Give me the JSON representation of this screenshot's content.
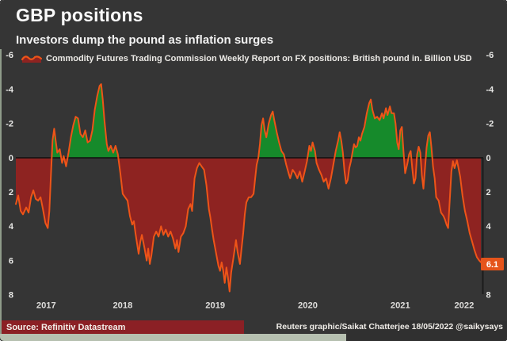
{
  "header": {
    "title": "GBP positions",
    "subtitle": "Investors dump the pound as inflation surges"
  },
  "legend": {
    "label": "Commodity Futures Trading Commission Weekly Report on FX positions: British pound in. Billion USD",
    "icon": "area-line-sample-icon"
  },
  "footer": {
    "source": "Source: Refinitiv Datastream",
    "credit": "Reuters graphic/Saikat Chatterjee 18/05/2022 @saikysays"
  },
  "colors": {
    "background": "#353535",
    "line": "#ee5418",
    "long_fill": "#168a2b",
    "short_fill": "#8e2321",
    "zero_line": "#101010",
    "spine": "#1c1c1c",
    "axis_text": "#e8e8e6",
    "year_text": "#dedddb",
    "badge_bg": "#e5541b",
    "badge_text": "#ffffff",
    "edge_strip": "#9fae99"
  },
  "chart_data": {
    "type": "area",
    "title": "GBP positions",
    "subtitle": "Investors dump the pound as inflation surges",
    "series_name": "CFTC weekly net GBP futures positions, billion USD",
    "value_convention": "positive = net short (dark red fill, plotted below 0), negative = net long (green fill, plotted above 0); y-axis inverted",
    "x_axis": {
      "tick_labels": [
        "2017",
        "2018",
        "2019",
        "2020",
        "2021",
        "2022"
      ],
      "range": [
        2017.345,
        2022.379
      ]
    },
    "y_axis": {
      "tick_labels": [
        -6,
        -4,
        -2,
        0,
        2,
        4,
        6,
        8
      ],
      "inverted": true,
      "range": [
        -6.4,
        8.6
      ]
    },
    "last_value": 6.1,
    "last_value_label": "6.1",
    "points": [
      [
        2017.345,
        2.7
      ],
      [
        2017.371,
        2.2
      ],
      [
        2017.397,
        3.1
      ],
      [
        2017.422,
        3.3
      ],
      [
        2017.457,
        2.9
      ],
      [
        2017.483,
        3.2
      ],
      [
        2017.509,
        2.3
      ],
      [
        2017.534,
        1.9
      ],
      [
        2017.56,
        2.4
      ],
      [
        2017.586,
        2.5
      ],
      [
        2017.612,
        2.3
      ],
      [
        2017.638,
        3.0
      ],
      [
        2017.664,
        3.8
      ],
      [
        2017.69,
        4.1
      ],
      [
        2017.707,
        3.1
      ],
      [
        2017.724,
        1.0
      ],
      [
        2017.741,
        -1.0
      ],
      [
        2017.759,
        -1.7
      ],
      [
        2017.776,
        -1.0
      ],
      [
        2017.793,
        -0.3
      ],
      [
        2017.819,
        -0.5
      ],
      [
        2017.845,
        0.3
      ],
      [
        2017.862,
        -0.1
      ],
      [
        2017.888,
        0.5
      ],
      [
        2017.914,
        -0.3
      ],
      [
        2017.94,
        -1.2
      ],
      [
        2017.966,
        -1.9
      ],
      [
        2017.991,
        -2.4
      ],
      [
        2018.017,
        -2.3
      ],
      [
        2018.043,
        -1.4
      ],
      [
        2018.069,
        -1.2
      ],
      [
        2018.095,
        -1.6
      ],
      [
        2018.121,
        -0.9
      ],
      [
        2018.147,
        -1.0
      ],
      [
        2018.172,
        -1.6
      ],
      [
        2018.198,
        -2.8
      ],
      [
        2018.224,
        -3.6
      ],
      [
        2018.25,
        -4.2
      ],
      [
        2018.267,
        -4.3
      ],
      [
        2018.284,
        -3.4
      ],
      [
        2018.302,
        -2.2
      ],
      [
        2018.328,
        -0.8
      ],
      [
        2018.345,
        -0.4
      ],
      [
        2018.371,
        -0.7
      ],
      [
        2018.397,
        -0.3
      ],
      [
        2018.422,
        -0.7
      ],
      [
        2018.448,
        -0.2
      ],
      [
        2018.474,
        0.9
      ],
      [
        2018.5,
        2.1
      ],
      [
        2018.526,
        2.3
      ],
      [
        2018.552,
        2.5
      ],
      [
        2018.578,
        3.4
      ],
      [
        2018.603,
        3.9
      ],
      [
        2018.621,
        3.7
      ],
      [
        2018.638,
        4.4
      ],
      [
        2018.655,
        5.0
      ],
      [
        2018.672,
        5.6
      ],
      [
        2018.69,
        4.9
      ],
      [
        2018.707,
        4.5
      ],
      [
        2018.733,
        5.2
      ],
      [
        2018.759,
        6.0
      ],
      [
        2018.776,
        5.3
      ],
      [
        2018.793,
        6.2
      ],
      [
        2018.81,
        5.7
      ],
      [
        2018.836,
        4.6
      ],
      [
        2018.862,
        4.3
      ],
      [
        2018.888,
        4.6
      ],
      [
        2018.914,
        4.0
      ],
      [
        2018.94,
        4.5
      ],
      [
        2018.966,
        4.2
      ],
      [
        2018.991,
        4.6
      ],
      [
        2019.017,
        4.3
      ],
      [
        2019.043,
        4.7
      ],
      [
        2019.069,
        5.3
      ],
      [
        2019.086,
        4.8
      ],
      [
        2019.103,
        5.5
      ],
      [
        2019.129,
        4.6
      ],
      [
        2019.155,
        4.4
      ],
      [
        2019.181,
        4.0
      ],
      [
        2019.207,
        3.0
      ],
      [
        2019.233,
        2.7
      ],
      [
        2019.25,
        3.1
      ],
      [
        2019.276,
        1.2
      ],
      [
        2019.302,
        0.6
      ],
      [
        2019.328,
        0.3
      ],
      [
        2019.353,
        0.5
      ],
      [
        2019.379,
        0.7
      ],
      [
        2019.405,
        1.6
      ],
      [
        2019.431,
        3.0
      ],
      [
        2019.448,
        3.5
      ],
      [
        2019.466,
        4.2
      ],
      [
        2019.483,
        4.8
      ],
      [
        2019.5,
        5.3
      ],
      [
        2019.517,
        5.8
      ],
      [
        2019.534,
        6.3
      ],
      [
        2019.552,
        6.6
      ],
      [
        2019.569,
        6.1
      ],
      [
        2019.586,
        6.6
      ],
      [
        2019.603,
        7.3
      ],
      [
        2019.621,
        6.4
      ],
      [
        2019.638,
        7.0
      ],
      [
        2019.655,
        7.8
      ],
      [
        2019.672,
        6.7
      ],
      [
        2019.698,
        5.8
      ],
      [
        2019.724,
        4.8
      ],
      [
        2019.741,
        5.5
      ],
      [
        2019.767,
        6.2
      ],
      [
        2019.784,
        5.3
      ],
      [
        2019.802,
        4.4
      ],
      [
        2019.819,
        3.3
      ],
      [
        2019.836,
        2.6
      ],
      [
        2019.862,
        2.3
      ],
      [
        2019.888,
        2.3
      ],
      [
        2019.914,
        2.1
      ],
      [
        2019.931,
        1.2
      ],
      [
        2019.948,
        0.4
      ],
      [
        2019.966,
        0.0
      ],
      [
        2019.983,
        -0.8
      ],
      [
        2020.0,
        -1.9
      ],
      [
        2020.017,
        -2.3
      ],
      [
        2020.034,
        -1.6
      ],
      [
        2020.052,
        -1.2
      ],
      [
        2020.078,
        -2.0
      ],
      [
        2020.103,
        -2.5
      ],
      [
        2020.121,
        -2.7
      ],
      [
        2020.138,
        -2.2
      ],
      [
        2020.164,
        -1.5
      ],
      [
        2020.19,
        -0.9
      ],
      [
        2020.216,
        -0.4
      ],
      [
        2020.241,
        -0.2
      ],
      [
        2020.267,
        0.4
      ],
      [
        2020.293,
        0.9
      ],
      [
        2020.31,
        1.2
      ],
      [
        2020.336,
        0.7
      ],
      [
        2020.362,
        0.9
      ],
      [
        2020.388,
        1.2
      ],
      [
        2020.414,
        0.8
      ],
      [
        2020.44,
        1.4
      ],
      [
        2020.466,
        0.8
      ],
      [
        2020.491,
        0.2
      ],
      [
        2020.517,
        -0.7
      ],
      [
        2020.534,
        -0.4
      ],
      [
        2020.552,
        -0.9
      ],
      [
        2020.578,
        -0.4
      ],
      [
        2020.595,
        0.3
      ],
      [
        2020.621,
        0.7
      ],
      [
        2020.647,
        1.0
      ],
      [
        2020.672,
        1.4
      ],
      [
        2020.698,
        1.2
      ],
      [
        2020.724,
        1.8
      ],
      [
        2020.75,
        1.2
      ],
      [
        2020.776,
        0.4
      ],
      [
        2020.802,
        -0.4
      ],
      [
        2020.828,
        -1.0
      ],
      [
        2020.845,
        -1.5
      ],
      [
        2020.862,
        -1.0
      ],
      [
        2020.879,
        -0.3
      ],
      [
        2020.897,
        0.8
      ],
      [
        2020.914,
        1.5
      ],
      [
        2020.931,
        1.3
      ],
      [
        2020.948,
        0.6
      ],
      [
        2020.966,
        0.2
      ],
      [
        2020.983,
        -0.3
      ],
      [
        2021.0,
        -0.8
      ],
      [
        2021.017,
        -0.6
      ],
      [
        2021.034,
        -0.7
      ],
      [
        2021.052,
        -1.2
      ],
      [
        2021.069,
        -1.0
      ],
      [
        2021.086,
        -1.4
      ],
      [
        2021.112,
        -1.8
      ],
      [
        2021.138,
        -2.6
      ],
      [
        2021.164,
        -3.2
      ],
      [
        2021.181,
        -3.4
      ],
      [
        2021.198,
        -2.8
      ],
      [
        2021.224,
        -2.3
      ],
      [
        2021.25,
        -2.4
      ],
      [
        2021.276,
        -2.2
      ],
      [
        2021.302,
        -2.6
      ],
      [
        2021.319,
        -2.3
      ],
      [
        2021.345,
        -2.9
      ],
      [
        2021.362,
        -2.5
      ],
      [
        2021.388,
        -3.0
      ],
      [
        2021.405,
        -2.6
      ],
      [
        2021.431,
        -2.6
      ],
      [
        2021.448,
        -2.0
      ],
      [
        2021.466,
        -0.9
      ],
      [
        2021.483,
        -0.5
      ],
      [
        2021.5,
        -1.6
      ],
      [
        2021.517,
        -1.8
      ],
      [
        2021.534,
        -0.4
      ],
      [
        2021.552,
        0.9
      ],
      [
        2021.578,
        0.3
      ],
      [
        2021.595,
        -0.2
      ],
      [
        2021.612,
        -0.4
      ],
      [
        2021.629,
        0.6
      ],
      [
        2021.647,
        1.5
      ],
      [
        2021.664,
        1.2
      ],
      [
        2021.681,
        -0.2
      ],
      [
        2021.698,
        -0.65
      ],
      [
        2021.716,
        -0.3
      ],
      [
        2021.733,
        1.0
      ],
      [
        2021.75,
        1.8
      ],
      [
        2021.767,
        0.6
      ],
      [
        2021.784,
        -0.6
      ],
      [
        2021.802,
        -1.3
      ],
      [
        2021.819,
        -1.5
      ],
      [
        2021.836,
        -0.6
      ],
      [
        2021.853,
        0.5
      ],
      [
        2021.871,
        1.2
      ],
      [
        2021.888,
        2.3
      ],
      [
        2021.914,
        2.5
      ],
      [
        2021.94,
        3.2
      ],
      [
        2021.966,
        3.4
      ],
      [
        2021.983,
        3.6
      ],
      [
        2022.0,
        3.9
      ],
      [
        2022.017,
        4.1
      ],
      [
        2022.034,
        2.5
      ],
      [
        2022.052,
        0.8
      ],
      [
        2022.069,
        0.2
      ],
      [
        2022.086,
        0.6
      ],
      [
        2022.112,
        0.15
      ],
      [
        2022.129,
        0.6
      ],
      [
        2022.147,
        1.1
      ],
      [
        2022.172,
        2.2
      ],
      [
        2022.198,
        3.1
      ],
      [
        2022.224,
        3.7
      ],
      [
        2022.25,
        4.4
      ],
      [
        2022.276,
        4.9
      ],
      [
        2022.302,
        5.4
      ],
      [
        2022.328,
        5.8
      ],
      [
        2022.353,
        6.0
      ],
      [
        2022.371,
        6.1
      ]
    ]
  }
}
